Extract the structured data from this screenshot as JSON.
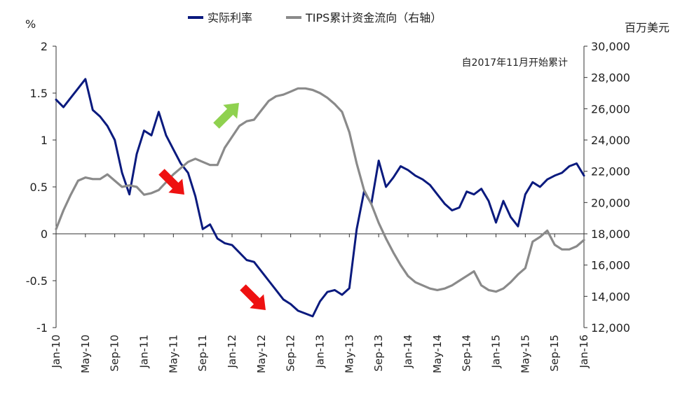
{
  "chart_data": {
    "type": "line",
    "legend": {
      "placement": "top-center",
      "entries": [
        "实际利率",
        "TIPS累计资金流向（右轴）"
      ]
    },
    "left_axis": {
      "unit": "%",
      "range": [
        -1,
        2
      ],
      "ticks": [
        "2",
        "1.5",
        "1",
        "0.5",
        "0",
        "-0.5",
        "-1"
      ]
    },
    "right_axis": {
      "unit": "百万美元",
      "range": [
        12000,
        30000
      ],
      "ticks": [
        "30,000",
        "28,000",
        "26,000",
        "24,000",
        "22,000",
        "20,000",
        "18,000",
        "16,000",
        "14,000",
        "12,000"
      ]
    },
    "x_axis": {
      "range": [
        "2010-01",
        "2016-01"
      ],
      "ticks": [
        "Jan-10",
        "May-10",
        "Sep-10",
        "Jan-11",
        "May-11",
        "Sep-11",
        "Jan-12",
        "May-12",
        "Sep-12",
        "Jan-13",
        "May-13",
        "Sep-13",
        "Jan-14",
        "May-14",
        "Sep-14",
        "Jan-15",
        "May-15",
        "Sep-15",
        "Jan-16"
      ]
    },
    "annotation": "自2017年11月开始累计",
    "grid": false,
    "colors": {
      "real_rate": "#0a1a7e",
      "tips_flow": "#8a8a8a",
      "arrow_down": "#ee1111",
      "arrow_up": "#8fd14f"
    },
    "series": [
      {
        "name": "实际利率",
        "axis": "left",
        "points": [
          [
            "2010-01",
            1.43
          ],
          [
            "2010-02",
            1.35
          ],
          [
            "2010-03",
            1.45
          ],
          [
            "2010-04",
            1.55
          ],
          [
            "2010-05",
            1.65
          ],
          [
            "2010-06",
            1.32
          ],
          [
            "2010-07",
            1.25
          ],
          [
            "2010-08",
            1.15
          ],
          [
            "2010-09",
            1.0
          ],
          [
            "2010-10",
            0.65
          ],
          [
            "2010-11",
            0.42
          ],
          [
            "2010-12",
            0.85
          ],
          [
            "2011-01",
            1.1
          ],
          [
            "2011-02",
            1.05
          ],
          [
            "2011-03",
            1.3
          ],
          [
            "2011-04",
            1.05
          ],
          [
            "2011-05",
            0.9
          ],
          [
            "2011-06",
            0.75
          ],
          [
            "2011-07",
            0.65
          ],
          [
            "2011-08",
            0.4
          ],
          [
            "2011-09",
            0.05
          ],
          [
            "2011-10",
            0.1
          ],
          [
            "2011-11",
            -0.05
          ],
          [
            "2011-12",
            -0.1
          ],
          [
            "2012-01",
            -0.12
          ],
          [
            "2012-02",
            -0.2
          ],
          [
            "2012-03",
            -0.28
          ],
          [
            "2012-04",
            -0.3
          ],
          [
            "2012-05",
            -0.4
          ],
          [
            "2012-06",
            -0.5
          ],
          [
            "2012-07",
            -0.6
          ],
          [
            "2012-08",
            -0.7
          ],
          [
            "2012-09",
            -0.75
          ],
          [
            "2012-10",
            -0.82
          ],
          [
            "2012-11",
            -0.85
          ],
          [
            "2012-12",
            -0.88
          ],
          [
            "2013-01",
            -0.72
          ],
          [
            "2013-02",
            -0.62
          ],
          [
            "2013-03",
            -0.6
          ],
          [
            "2013-04",
            -0.65
          ],
          [
            "2013-05",
            -0.58
          ],
          [
            "2013-06",
            0.05
          ],
          [
            "2013-07",
            0.45
          ],
          [
            "2013-08",
            0.32
          ],
          [
            "2013-09",
            0.78
          ],
          [
            "2013-10",
            0.5
          ],
          [
            "2013-11",
            0.6
          ],
          [
            "2013-12",
            0.72
          ],
          [
            "2014-01",
            0.68
          ],
          [
            "2014-02",
            0.62
          ],
          [
            "2014-03",
            0.58
          ],
          [
            "2014-04",
            0.52
          ],
          [
            "2014-05",
            0.42
          ],
          [
            "2014-06",
            0.32
          ],
          [
            "2014-07",
            0.25
          ],
          [
            "2014-08",
            0.28
          ],
          [
            "2014-09",
            0.45
          ],
          [
            "2014-10",
            0.42
          ],
          [
            "2014-11",
            0.48
          ],
          [
            "2014-12",
            0.35
          ],
          [
            "2015-01",
            0.12
          ],
          [
            "2015-02",
            0.35
          ],
          [
            "2015-03",
            0.18
          ],
          [
            "2015-04",
            0.08
          ],
          [
            "2015-05",
            0.42
          ],
          [
            "2015-06",
            0.55
          ],
          [
            "2015-07",
            0.5
          ],
          [
            "2015-08",
            0.58
          ],
          [
            "2015-09",
            0.62
          ],
          [
            "2015-10",
            0.65
          ],
          [
            "2015-11",
            0.72
          ],
          [
            "2015-12",
            0.75
          ],
          [
            "2016-01",
            0.62
          ]
        ]
      },
      {
        "name": "TIPS累计资金流向（右轴）",
        "axis": "right",
        "points": [
          [
            "2010-01",
            18300
          ],
          [
            "2010-02",
            19500
          ],
          [
            "2010-03",
            20500
          ],
          [
            "2010-04",
            21400
          ],
          [
            "2010-05",
            21600
          ],
          [
            "2010-06",
            21500
          ],
          [
            "2010-07",
            21500
          ],
          [
            "2010-08",
            21800
          ],
          [
            "2010-09",
            21400
          ],
          [
            "2010-10",
            21000
          ],
          [
            "2010-11",
            21100
          ],
          [
            "2010-12",
            21000
          ],
          [
            "2011-01",
            20500
          ],
          [
            "2011-02",
            20600
          ],
          [
            "2011-03",
            20800
          ],
          [
            "2011-04",
            21300
          ],
          [
            "2011-05",
            21800
          ],
          [
            "2011-06",
            22200
          ],
          [
            "2011-07",
            22600
          ],
          [
            "2011-08",
            22800
          ],
          [
            "2011-09",
            22600
          ],
          [
            "2011-10",
            22400
          ],
          [
            "2011-11",
            22400
          ],
          [
            "2011-12",
            23500
          ],
          [
            "2012-01",
            24200
          ],
          [
            "2012-02",
            24900
          ],
          [
            "2012-03",
            25200
          ],
          [
            "2012-04",
            25300
          ],
          [
            "2012-05",
            25900
          ],
          [
            "2012-06",
            26500
          ],
          [
            "2012-07",
            26800
          ],
          [
            "2012-08",
            26900
          ],
          [
            "2012-09",
            27100
          ],
          [
            "2012-10",
            27300
          ],
          [
            "2012-11",
            27300
          ],
          [
            "2012-12",
            27200
          ],
          [
            "2013-01",
            27000
          ],
          [
            "2013-02",
            26700
          ],
          [
            "2013-03",
            26300
          ],
          [
            "2013-04",
            25800
          ],
          [
            "2013-05",
            24500
          ],
          [
            "2013-06",
            22500
          ],
          [
            "2013-07",
            20800
          ],
          [
            "2013-08",
            19900
          ],
          [
            "2013-09",
            18700
          ],
          [
            "2013-10",
            17700
          ],
          [
            "2013-11",
            16800
          ],
          [
            "2013-12",
            16000
          ],
          [
            "2014-01",
            15300
          ],
          [
            "2014-02",
            14900
          ],
          [
            "2014-03",
            14700
          ],
          [
            "2014-04",
            14500
          ],
          [
            "2014-05",
            14400
          ],
          [
            "2014-06",
            14500
          ],
          [
            "2014-07",
            14700
          ],
          [
            "2014-08",
            15000
          ],
          [
            "2014-09",
            15300
          ],
          [
            "2014-10",
            15600
          ],
          [
            "2014-11",
            14700
          ],
          [
            "2014-12",
            14400
          ],
          [
            "2015-01",
            14300
          ],
          [
            "2015-02",
            14500
          ],
          [
            "2015-03",
            14900
          ],
          [
            "2015-04",
            15400
          ],
          [
            "2015-05",
            15800
          ],
          [
            "2015-06",
            17500
          ],
          [
            "2015-07",
            17800
          ],
          [
            "2015-08",
            18200
          ],
          [
            "2015-09",
            17300
          ],
          [
            "2015-10",
            17000
          ],
          [
            "2015-11",
            17000
          ],
          [
            "2015-12",
            17200
          ],
          [
            "2016-01",
            17600
          ]
        ]
      }
    ]
  }
}
